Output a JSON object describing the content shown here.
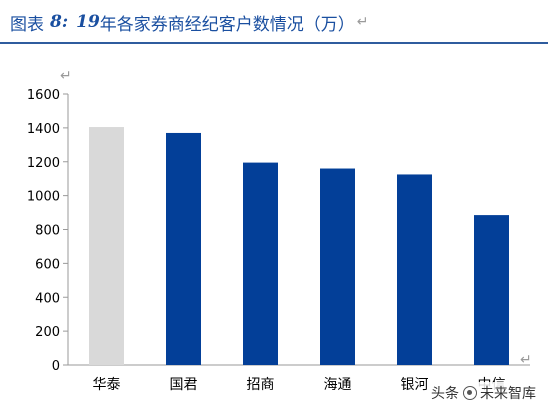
{
  "header": {
    "label": "图表",
    "number": "8:",
    "year": "19",
    "title": "年各家券商经纪客户数情况（万）",
    "return_mark": "↵"
  },
  "colors": {
    "title": "#1a4fa0",
    "bar_primary": "#033f98",
    "bar_highlight": "#d9d9d9",
    "rule": "#2f5c9e"
  },
  "chart_data": {
    "type": "bar",
    "title": "19年各家券商经纪客户数情况（万）",
    "xlabel": "",
    "ylabel": "",
    "categories": [
      "华泰",
      "国君",
      "招商",
      "海通",
      "银河",
      "中信"
    ],
    "values": [
      1405,
      1370,
      1195,
      1160,
      1125,
      885
    ],
    "highlight_index": 0,
    "ylim": [
      0,
      1600
    ],
    "yticks": [
      0,
      200,
      400,
      600,
      800,
      1000,
      1200,
      1400,
      1600
    ],
    "grid": false,
    "legend": "none"
  },
  "watermark": {
    "prefix": "头条",
    "source": "未来智库"
  }
}
